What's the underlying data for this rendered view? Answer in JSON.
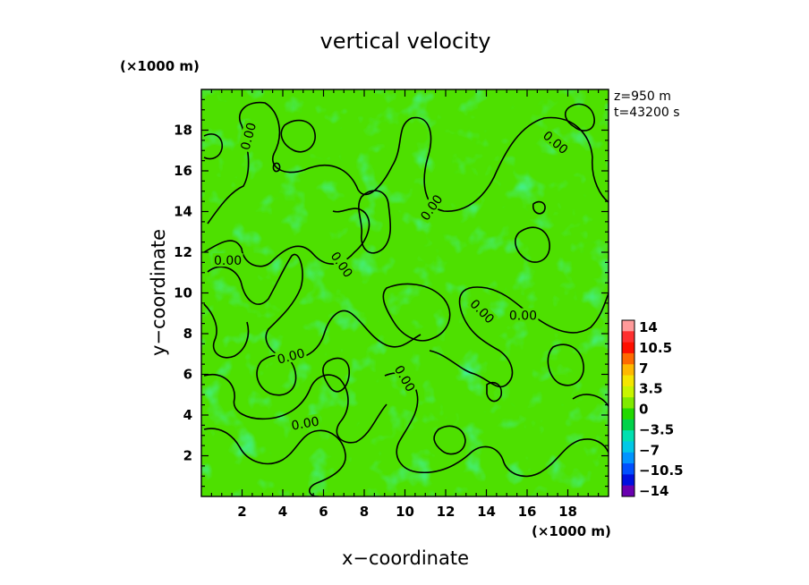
{
  "chart_data": {
    "type": "heatmap",
    "title": "vertical velocity",
    "xlabel": "x−coordinate",
    "ylabel": "y−coordinate",
    "x_unit": "(×1000 m)",
    "y_unit": "(×1000 m)",
    "xlim": [
      0,
      20
    ],
    "ylim": [
      0,
      20
    ],
    "x_ticks": [
      2,
      4,
      6,
      8,
      10,
      12,
      14,
      16,
      18
    ],
    "y_ticks": [
      2,
      4,
      6,
      8,
      10,
      12,
      14,
      16,
      18
    ],
    "x_tick_labels": [
      "2",
      "4",
      "6",
      "8",
      "10",
      "12",
      "14",
      "16",
      "18"
    ],
    "y_tick_labels": [
      "2",
      "4",
      "6",
      "8",
      "10",
      "12",
      "14",
      "16",
      "18"
    ],
    "info_lines": [
      "z=950 m",
      "t=43200 s"
    ],
    "contour_level_label": "0.00",
    "contour_labels": [
      {
        "x": 2.3,
        "y": 17.7,
        "text": "0.00",
        "angle": -75
      },
      {
        "x": 1.3,
        "y": 11.6,
        "text": "0.00",
        "angle": 0
      },
      {
        "x": 6.9,
        "y": 11.4,
        "text": "0.00",
        "angle": 55
      },
      {
        "x": 4.4,
        "y": 6.9,
        "text": "0.00",
        "angle": -15
      },
      {
        "x": 5.1,
        "y": 3.6,
        "text": "0.00",
        "angle": -10
      },
      {
        "x": 10.0,
        "y": 5.8,
        "text": "0.00",
        "angle": 60
      },
      {
        "x": 11.3,
        "y": 14.2,
        "text": "0.00",
        "angle": -55
      },
      {
        "x": 13.8,
        "y": 9.1,
        "text": "0.00",
        "angle": 45
      },
      {
        "x": 15.8,
        "y": 8.9,
        "text": "0.00",
        "angle": 0
      },
      {
        "x": 17.4,
        "y": 17.4,
        "text": "0.00",
        "angle": 40
      }
    ],
    "colorbar": {
      "min": -14,
      "max": 14,
      "labels": [
        "14",
        "10.5",
        "7",
        "3.5",
        "0",
        "−3.5",
        "−7",
        "−10.5",
        "−14"
      ],
      "colors": [
        "#ff9a9a",
        "#ff3030",
        "#ff1000",
        "#ff6a00",
        "#ffb800",
        "#f5e600",
        "#c8f500",
        "#7fea00",
        "#22d900",
        "#00d24a",
        "#00e0b0",
        "#00c8e6",
        "#0094ff",
        "#0050ff",
        "#0010e0",
        "#6a00b0"
      ]
    }
  }
}
